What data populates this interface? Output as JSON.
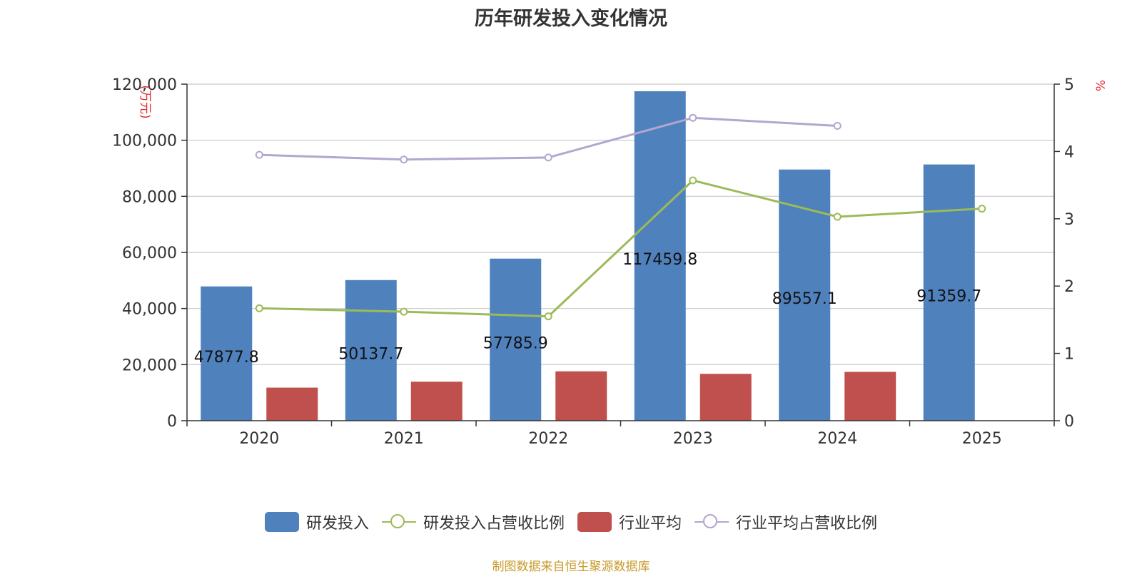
{
  "chart_data": {
    "type": "bar",
    "title": "历年研发投入变化情况",
    "categories": [
      "2020",
      "2021",
      "2022",
      "2023",
      "2024",
      "2025"
    ],
    "left_axis": {
      "label": "(万元)",
      "ylim": [
        0,
        120000
      ],
      "ticks": [
        0,
        20000,
        40000,
        60000,
        80000,
        100000,
        120000
      ],
      "tick_labels": [
        "0",
        "20,000",
        "40,000",
        "60,000",
        "80,000",
        "100,000",
        "120,000"
      ]
    },
    "right_axis": {
      "label": "%",
      "ylim": [
        0,
        5
      ],
      "ticks": [
        0,
        1,
        2,
        3,
        4,
        5
      ],
      "tick_labels": [
        "0",
        "1",
        "2",
        "3",
        "4",
        "5"
      ]
    },
    "grid": true,
    "legend_position": "bottom-center",
    "series": [
      {
        "name": "研发投入",
        "type": "bar",
        "axis": "left",
        "color": "#4f81bd",
        "values": [
          47877.8,
          50137.7,
          57785.9,
          117459.8,
          89557.1,
          91359.7
        ],
        "data_labels": [
          "47877.8",
          "50137.7",
          "57785.9",
          "117459.8",
          "89557.1",
          "91359.7"
        ]
      },
      {
        "name": "研发投入占营收比例",
        "type": "line",
        "axis": "right",
        "color": "#9bbb59",
        "values": [
          1.67,
          1.62,
          1.55,
          3.57,
          3.03,
          3.15
        ]
      },
      {
        "name": "行业平均",
        "type": "bar",
        "axis": "left",
        "color": "#c0504d",
        "values": [
          11800,
          13900,
          17600,
          16700,
          17400,
          null
        ]
      },
      {
        "name": "行业平均占营收比例",
        "type": "line",
        "axis": "right",
        "color": "#b3a6cf",
        "values": [
          3.95,
          3.88,
          3.91,
          4.5,
          4.38,
          null
        ]
      }
    ]
  },
  "source_note": "制图数据来自恒生聚源数据库"
}
